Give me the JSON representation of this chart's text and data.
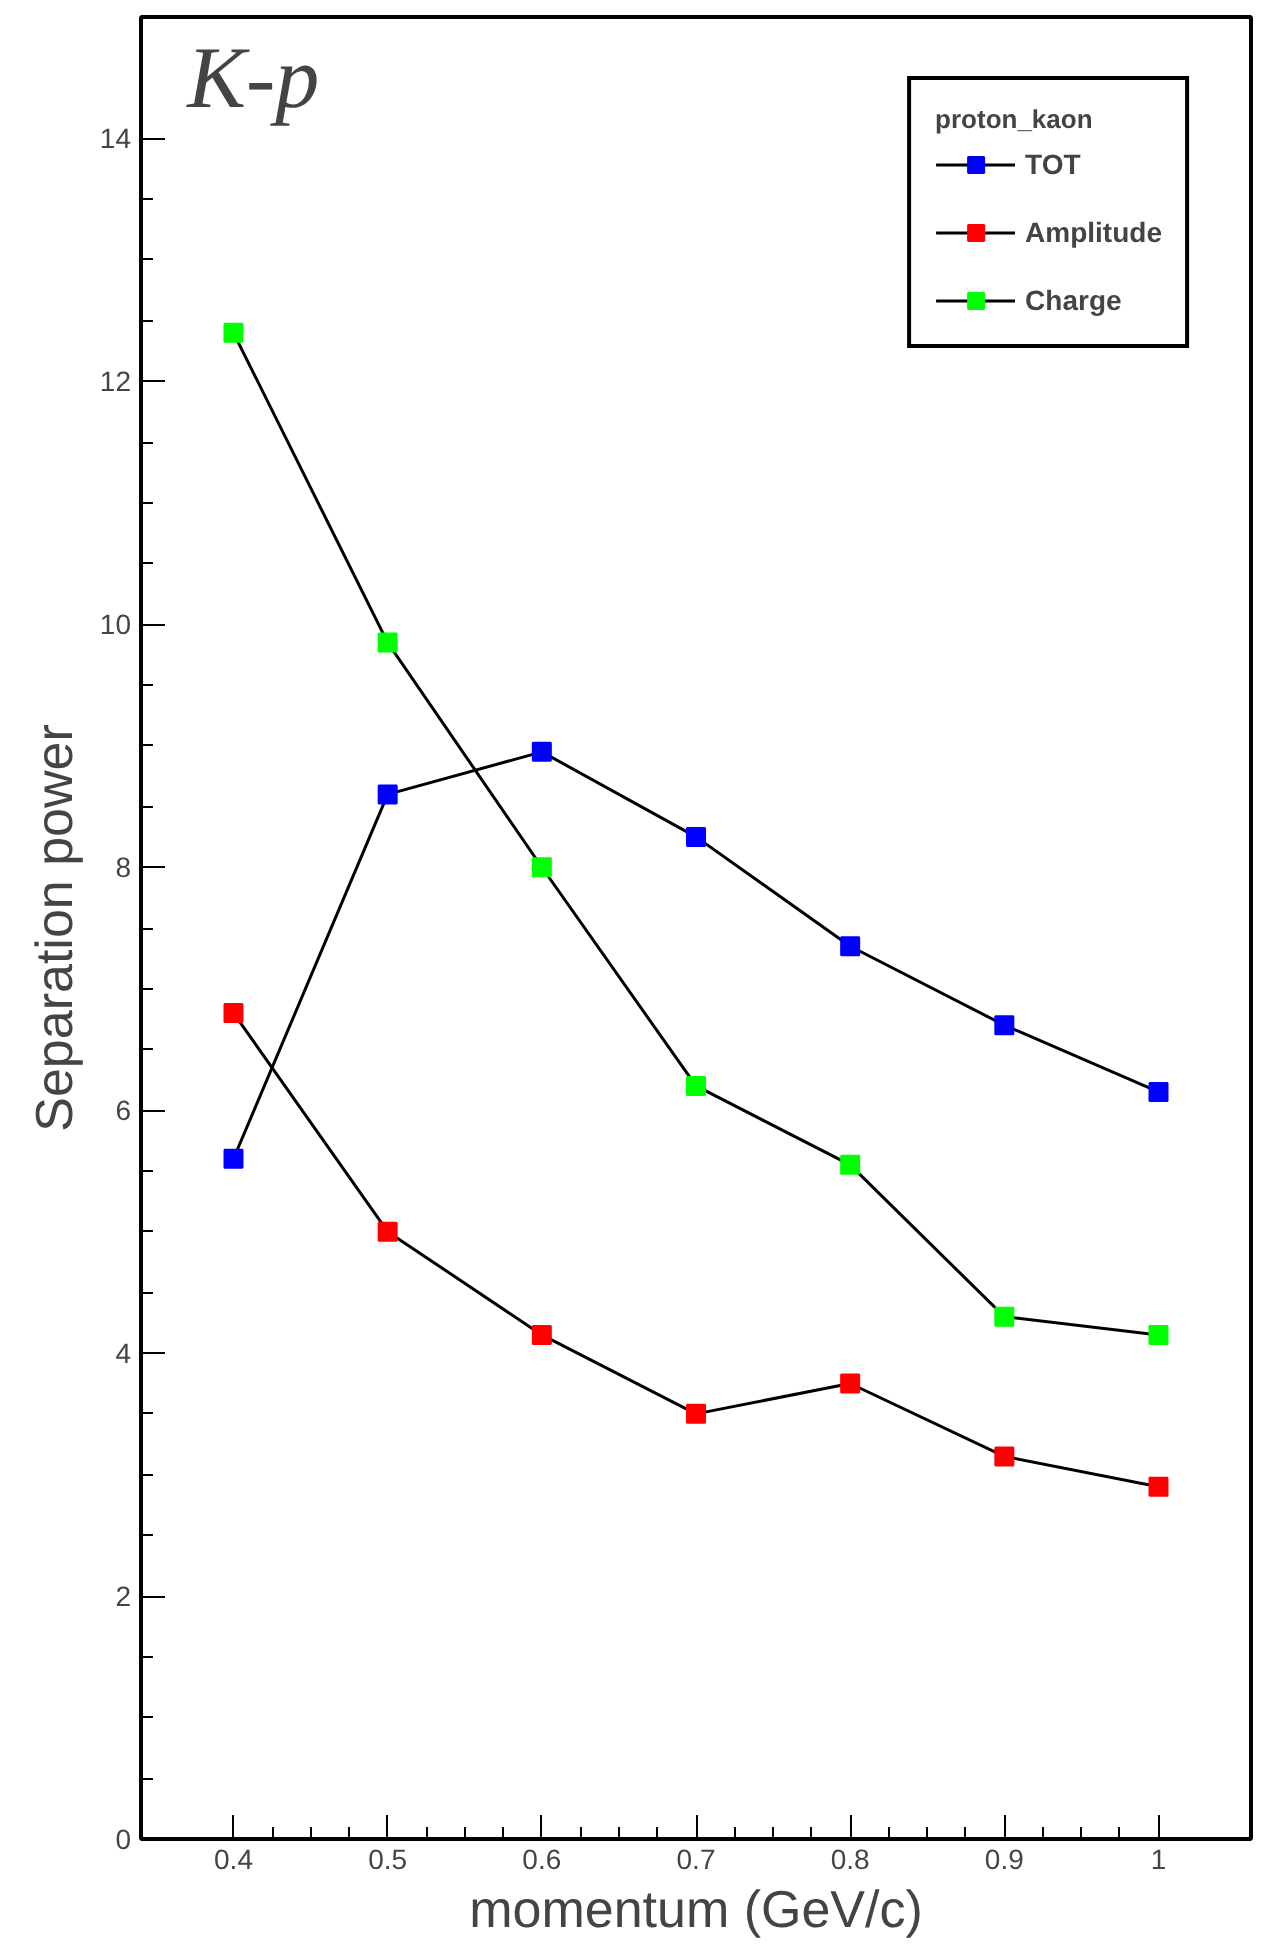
{
  "chart_data": {
    "type": "line",
    "xlabel": "momentum (GeV/c)",
    "ylabel": "Separation power",
    "legend_title": "proton_kaon",
    "annotations": [
      "K-p"
    ],
    "x": [
      0.4,
      0.5,
      0.6,
      0.7,
      0.8,
      0.9,
      1
    ],
    "series": [
      {
        "name": "TOT",
        "color": "#0000ff",
        "values": [
          5.6,
          8.6,
          8.95,
          8.25,
          7.35,
          6.7,
          6.15
        ]
      },
      {
        "name": "Amplitude",
        "color": "#ff0000",
        "values": [
          6.8,
          5.0,
          4.15,
          3.5,
          3.75,
          3.15,
          2.9
        ]
      },
      {
        "name": "Charge",
        "color": "#00ff00",
        "values": [
          12.4,
          9.85,
          8.0,
          6.2,
          5.55,
          4.3,
          4.15
        ]
      }
    ],
    "xlim": [
      0.34,
      1.06
    ],
    "ylim": [
      0,
      15
    ],
    "xticks": [
      0.4,
      0.5,
      0.6,
      0.7,
      0.8,
      0.9,
      1
    ],
    "yticks": [
      0,
      2,
      4,
      6,
      8,
      10,
      12,
      14
    ],
    "grid": false,
    "legend": "top right",
    "marker": "square",
    "line_style": "solid"
  }
}
